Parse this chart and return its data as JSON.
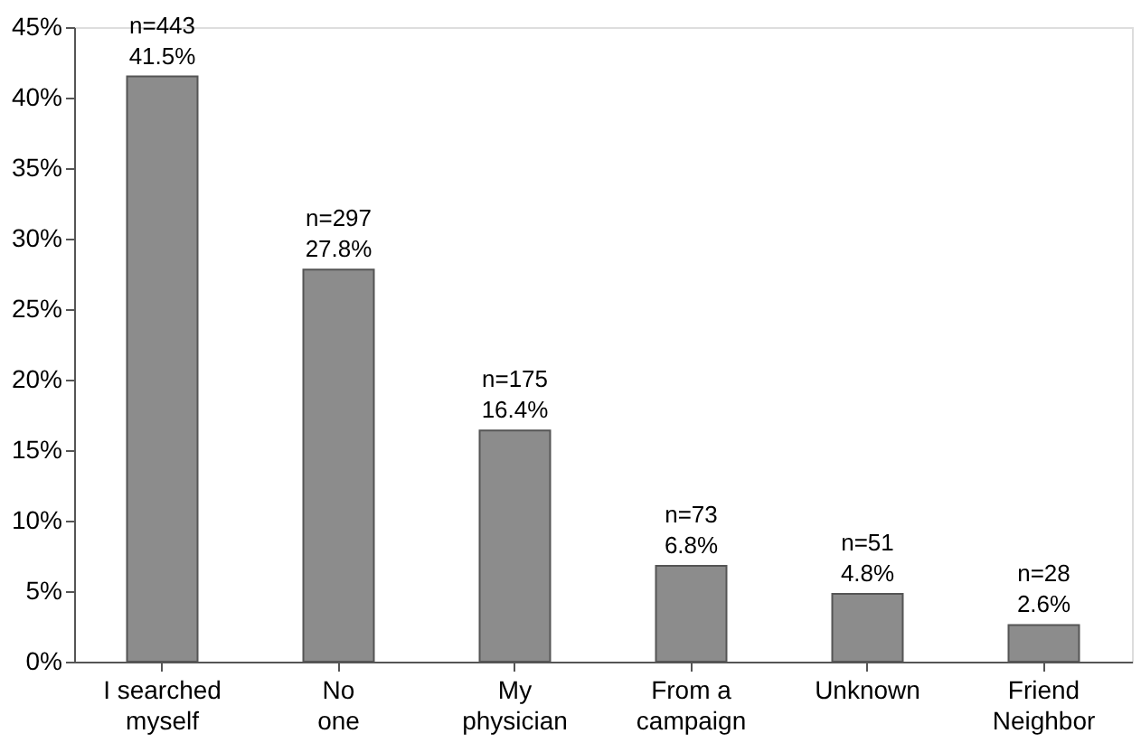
{
  "chart_data": {
    "type": "bar",
    "categories": [
      "I searched\nmyself",
      "No\none",
      "My\nphysician",
      "From a\ncampaign",
      "Unknown",
      "Friend\nNeighbor"
    ],
    "values": [
      41.5,
      27.8,
      16.4,
      6.8,
      4.8,
      2.6
    ],
    "value_labels": [
      "n=443\n41.5%",
      "n=297\n27.8%",
      "n=175\n16.4%",
      "n=73\n6.8%",
      "n=51\n4.8%",
      "n=28\n2.6%"
    ],
    "color": "#8c8c8c",
    "ylim": [
      0,
      45
    ],
    "yticks": [
      {
        "value": 0,
        "label": "0%"
      },
      {
        "value": 5,
        "label": "5%"
      },
      {
        "value": 10,
        "label": "10%"
      },
      {
        "value": 15,
        "label": "15%"
      },
      {
        "value": 20,
        "label": "20%"
      },
      {
        "value": 25,
        "label": "25%"
      },
      {
        "value": 30,
        "label": "30%"
      },
      {
        "value": 35,
        "label": "35%"
      },
      {
        "value": 40,
        "label": "40%"
      },
      {
        "value": 45,
        "label": "45%"
      }
    ],
    "grid": false
  }
}
